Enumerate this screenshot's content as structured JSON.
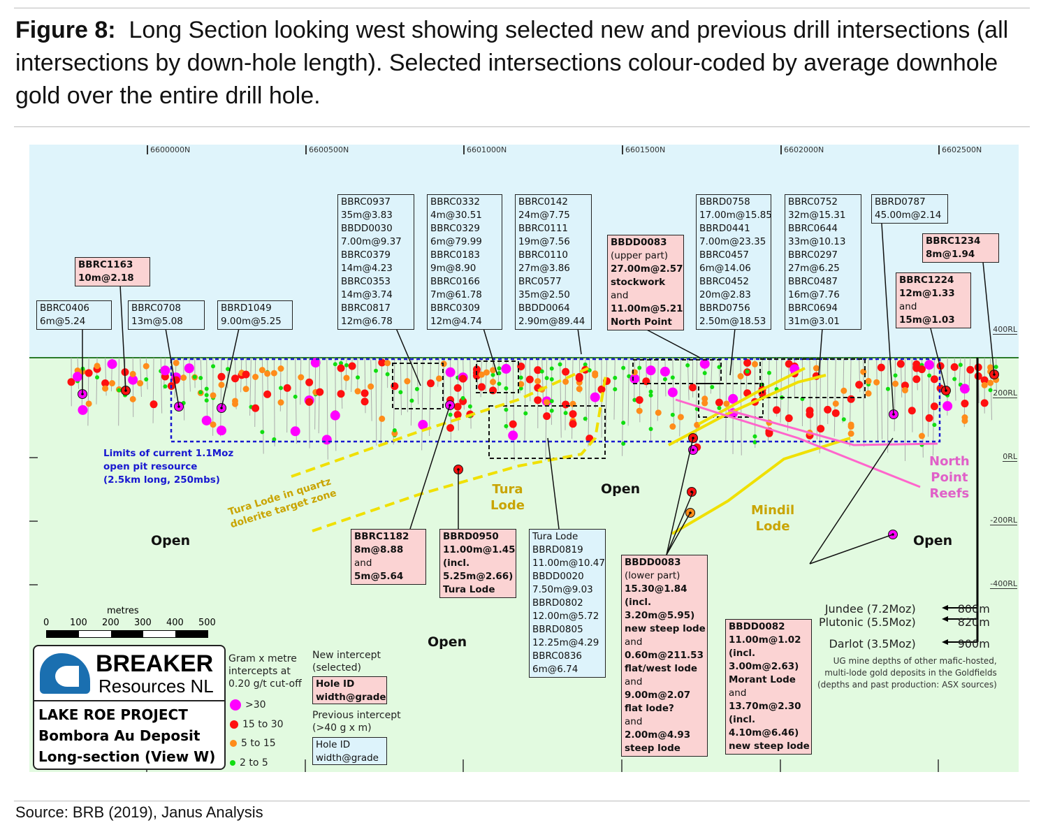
{
  "caption": {
    "label": "Figure 8:",
    "text": "Long Section looking west showing selected new and previous drill intersections (all intersections by down-hole length).  Selected intersections colour-coded by average downhole gold over the entire drill hole."
  },
  "source": "Source: BRB (2019), Janus Analysis",
  "northings": [
    "6600000N",
    "6600500N",
    "6601000N",
    "6601500N",
    "6602000N",
    "6602500N"
  ],
  "rl_labels": [
    "400RL",
    "200RL",
    "0RL",
    "-200RL",
    "-400RL"
  ],
  "boxes": [
    {
      "style": "blue",
      "lines": [
        {
          "t": "BBRC0406"
        },
        {
          "t": "6m@5.24"
        }
      ]
    },
    {
      "style": "red",
      "lines": [
        {
          "t": "BBRC1163",
          "b": 1
        },
        {
          "t": "10m@2.18",
          "b": 1
        }
      ]
    },
    {
      "style": "blue",
      "lines": [
        {
          "t": "BBRC0708"
        },
        {
          "t": "13m@5.08"
        }
      ]
    },
    {
      "style": "blue",
      "lines": [
        {
          "t": "BBRD1049"
        },
        {
          "t": "9.00m@5.25"
        }
      ]
    },
    {
      "style": "blue",
      "lines": [
        {
          "t": "BBRC0937"
        },
        {
          "t": "35m@3.83"
        },
        {
          "t": "BBDD0030"
        },
        {
          "t": "7.00m@9.37"
        },
        {
          "t": "BBRC0379"
        },
        {
          "t": "14m@4.23"
        },
        {
          "t": "BBRC0353"
        },
        {
          "t": "14m@3.74"
        },
        {
          "t": "BBRC0817"
        },
        {
          "t": "12m@6.78"
        }
      ]
    },
    {
      "style": "blue",
      "lines": [
        {
          "t": "BBRC0332"
        },
        {
          "t": "4m@30.51"
        },
        {
          "t": "BBRC0329"
        },
        {
          "t": "6m@79.99"
        },
        {
          "t": "BBRC0183"
        },
        {
          "t": "9m@8.90"
        },
        {
          "t": "BBRC0166"
        },
        {
          "t": "7m@61.78"
        },
        {
          "t": "BBRC0309"
        },
        {
          "t": "12m@4.74"
        }
      ]
    },
    {
      "style": "blue",
      "lines": [
        {
          "t": "BBRC0142"
        },
        {
          "t": "24m@7.75"
        },
        {
          "t": "BBRC0111"
        },
        {
          "t": "19m@7.56"
        },
        {
          "t": "BBRC0110"
        },
        {
          "t": "27m@3.86"
        },
        {
          "t": "BRC0577"
        },
        {
          "t": "35m@2.50"
        },
        {
          "t": "BBDD0064"
        },
        {
          "t": "2.90m@89.44"
        }
      ]
    },
    {
      "style": "red",
      "lines": [
        {
          "t": "BBDD0083",
          "b": 1
        },
        {
          "t": "(upper part)"
        },
        {
          "t": "27.00m@2.57",
          "b": 1
        },
        {
          "t": "stockwork",
          "b": 1
        },
        {
          "t": "and"
        },
        {
          "t": "11.00m@5.21",
          "b": 1
        },
        {
          "t": "North Point",
          "b": 1
        }
      ]
    },
    {
      "style": "blue",
      "lines": [
        {
          "t": "BBRD0758"
        },
        {
          "t": "17.00m@15.85"
        },
        {
          "t": "BBRD0441"
        },
        {
          "t": "7.00m@23.35"
        },
        {
          "t": "BBRC0457"
        },
        {
          "t": "6m@14.06"
        },
        {
          "t": "BBRC0452"
        },
        {
          "t": "20m@2.83"
        },
        {
          "t": "BBRD0756"
        },
        {
          "t": "2.50m@18.53"
        }
      ]
    },
    {
      "style": "blue",
      "lines": [
        {
          "t": "BBRC0752"
        },
        {
          "t": "32m@15.31"
        },
        {
          "t": "BBRC0644"
        },
        {
          "t": "33m@10.13"
        },
        {
          "t": "BBRC0297"
        },
        {
          "t": "27m@6.25"
        },
        {
          "t": "BBRC0487"
        },
        {
          "t": "16m@7.76"
        },
        {
          "t": "BBRC0694"
        },
        {
          "t": "31m@3.01"
        }
      ]
    },
    {
      "style": "blue",
      "lines": [
        {
          "t": "BBRD0787"
        },
        {
          "t": "45.00m@2.14"
        }
      ]
    },
    {
      "style": "red",
      "lines": [
        {
          "t": "BBRC1234",
          "b": 1
        },
        {
          "t": "8m@1.94",
          "b": 1
        }
      ]
    },
    {
      "style": "red",
      "lines": [
        {
          "t": "BBRC1224",
          "b": 1
        },
        {
          "t": "12m@1.33",
          "b": 1
        },
        {
          "t": "and"
        },
        {
          "t": "15m@1.03",
          "b": 1
        }
      ]
    },
    {
      "style": "red",
      "lines": [
        {
          "t": "BBRC1182",
          "b": 1
        },
        {
          "t": "8m@8.88",
          "b": 1
        },
        {
          "t": "and"
        },
        {
          "t": "5m@5.64",
          "b": 1
        }
      ]
    },
    {
      "style": "red",
      "lines": [
        {
          "t": "BBRD0950",
          "b": 1
        },
        {
          "t": "11.00m@1.45",
          "b": 1
        },
        {
          "t": "(incl.",
          "b": 1
        },
        {
          "t": "5.25m@2.66)",
          "b": 1
        },
        {
          "t": "Tura Lode",
          "b": 1
        }
      ]
    },
    {
      "style": "blue",
      "lines": [
        {
          "t": "Tura Lode"
        },
        {
          "t": "BBRD0819"
        },
        {
          "t": "11.00m@10.47"
        },
        {
          "t": "BBDD0020"
        },
        {
          "t": "7.50m@9.03"
        },
        {
          "t": "BBRD0802"
        },
        {
          "t": "12.00m@5.72"
        },
        {
          "t": "BBRD0805"
        },
        {
          "t": "12.25m@4.29"
        },
        {
          "t": "BBRC0836"
        },
        {
          "t": "6m@6.74"
        }
      ]
    },
    {
      "style": "red",
      "lines": [
        {
          "t": "BBDD0083",
          "b": 1
        },
        {
          "t": "(lower part)"
        },
        {
          "t": "15.30@1.84",
          "b": 1
        },
        {
          "t": "(incl.",
          "b": 1
        },
        {
          "t": "3.20m@5.95)",
          "b": 1
        },
        {
          "t": "new steep lode",
          "b": 1
        },
        {
          "t": "and"
        },
        {
          "t": "0.60m@211.53",
          "b": 1
        },
        {
          "t": "flat/west lode",
          "b": 1
        },
        {
          "t": "and"
        },
        {
          "t": "9.00m@2.07",
          "b": 1
        },
        {
          "t": "flat lode?",
          "b": 1
        },
        {
          "t": "and"
        },
        {
          "t": "2.00m@4.93",
          "b": 1
        },
        {
          "t": "steep lode",
          "b": 1
        }
      ]
    },
    {
      "style": "red",
      "lines": [
        {
          "t": "BBDD0082",
          "b": 1
        },
        {
          "t": "11.00m@1.02",
          "b": 1
        },
        {
          "t": "(incl.",
          "b": 1
        },
        {
          "t": "3.00m@2.63)",
          "b": 1
        },
        {
          "t": "Morant Lode",
          "b": 1
        },
        {
          "t": "and"
        },
        {
          "t": "13.70m@2.30",
          "b": 1
        },
        {
          "t": "(incl.",
          "b": 1
        },
        {
          "t": "4.10m@6.46)",
          "b": 1
        },
        {
          "t": "new steep lode",
          "b": 1
        }
      ]
    }
  ],
  "annotations": {
    "resource": [
      "Limits of current 1.1Moz",
      "open pit resource",
      "(2.5km long, 250mbs)"
    ],
    "tura_target": [
      "Tura Lode in quartz",
      "dolerite target zone"
    ],
    "tura_lode": [
      "Tura",
      "Lode"
    ],
    "mindil_lode": [
      "Mindil",
      "Lode"
    ],
    "north_point": [
      "North",
      "Point",
      "Reefs"
    ],
    "open": [
      "Open",
      "Open",
      "Open",
      "Open"
    ]
  },
  "depths": {
    "mines": [
      {
        "name": "Jundee (7.2Moz)",
        "depth": "800m"
      },
      {
        "name": "Plutonic (5.5Moz)",
        "depth": "820m"
      },
      {
        "name": "Darlot (3.5Moz)",
        "depth": "900m"
      }
    ],
    "note": [
      "UG mine depths of other mafic-hosted,",
      "multi-lode gold deposits in the Goldfields",
      "(depths and past production: ASX sources)"
    ]
  },
  "scale": {
    "title": "metres",
    "ticks": [
      "0",
      "100",
      "200",
      "300",
      "400",
      "500"
    ]
  },
  "logo": {
    "name": "BREAKER",
    "sub": "Resources NL",
    "project": [
      "LAKE ROE PROJECT",
      "Bombora Au Deposit",
      "Long-section (View W)"
    ]
  },
  "legend": {
    "title": [
      "Gram x metre",
      "intercepts at",
      "0.20 g/t cut-off"
    ],
    "items": [
      {
        "label": ">30",
        "color": "#ff00ff"
      },
      {
        "label": "15 to 30",
        "color": "#ff1010"
      },
      {
        "label": "5 to 15",
        "color": "#ff8c1a"
      },
      {
        "label": "2 to 5",
        "color": "#11dd11"
      }
    ],
    "new_title": [
      "New intercept",
      "(selected)"
    ],
    "prev_title": [
      "Previous intercept",
      "(>40 g x m)"
    ],
    "box_lines": [
      "Hole ID",
      "width@grade"
    ]
  }
}
